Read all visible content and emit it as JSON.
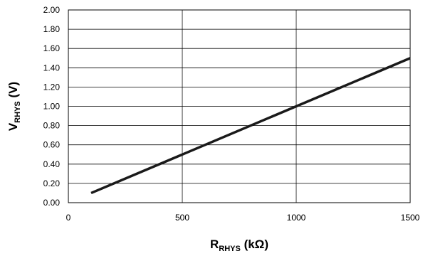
{
  "chart_data": {
    "type": "line",
    "title": "",
    "xlabel": {
      "main": "R",
      "sub": "RHYS",
      "unit": " (kΩ)"
    },
    "ylabel": {
      "main": "V",
      "sub": "RHYS",
      "unit": " (V)"
    },
    "xlim": [
      0,
      1500
    ],
    "ylim": [
      0,
      2.0
    ],
    "x_ticks": [
      0,
      500,
      1000,
      1500
    ],
    "x_tick_labels": [
      "0",
      "500",
      "1000",
      "1500"
    ],
    "y_ticks": [
      0,
      0.2,
      0.4,
      0.6,
      0.8,
      1.0,
      1.2,
      1.4,
      1.6,
      1.8,
      2.0
    ],
    "y_tick_labels": [
      "0.00",
      "0.20",
      "0.40",
      "0.60",
      "0.80",
      "1.00",
      "1.20",
      "1.40",
      "1.60",
      "1.80",
      "2.00"
    ],
    "grid": true,
    "series": [
      {
        "x": [
          100,
          1500
        ],
        "y": [
          0.1,
          1.5
        ],
        "color": "#1a1a1a"
      }
    ]
  }
}
